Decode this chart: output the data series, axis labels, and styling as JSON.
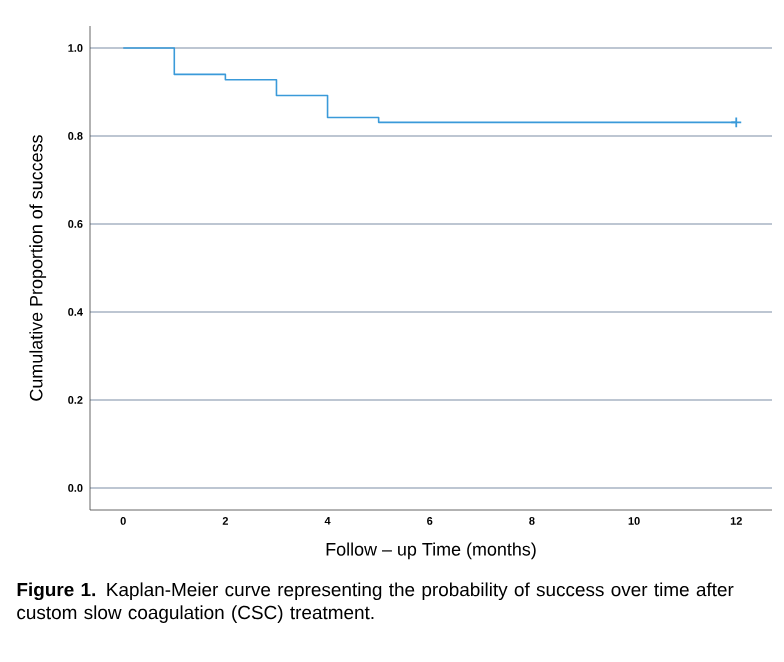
{
  "chart_data": {
    "type": "step",
    "xlabel": "Follow – up Time (months)",
    "ylabel": "Cumulative Proportion of success",
    "annotations": [
      "**Figure 1.** Kaplan-Meier curve representing the probability of success over time after custom slow coagulation (CSC) treatment."
    ],
    "xlim": [
      -0.65,
      12.7
    ],
    "ylim": [
      -0.05,
      1.05
    ],
    "xticks": [
      0,
      2,
      4,
      6,
      8,
      10,
      12
    ],
    "yticks": [
      {
        "value": 0,
        "label": "0.0"
      },
      {
        "value": 0.2,
        "label": "0.2"
      },
      {
        "value": 0.4,
        "label": "0.4"
      },
      {
        "value": 0.6,
        "label": "0.6"
      },
      {
        "value": 0.8,
        "label": "0.8"
      },
      {
        "value": 1,
        "label": "1.0"
      }
    ],
    "grid": "y",
    "series": [
      {
        "color": "#3a9ad9",
        "x": [
          0,
          1,
          2,
          3,
          4,
          5,
          12
        ],
        "values": [
          1.0,
          0.94,
          0.928,
          0.892,
          0.842,
          0.831,
          0.831
        ]
      },
      {
        "type": "scatter",
        "color": "#3a9ad9",
        "marker": "cross",
        "x": [
          12
        ],
        "values": [
          0.831
        ]
      }
    ]
  }
}
